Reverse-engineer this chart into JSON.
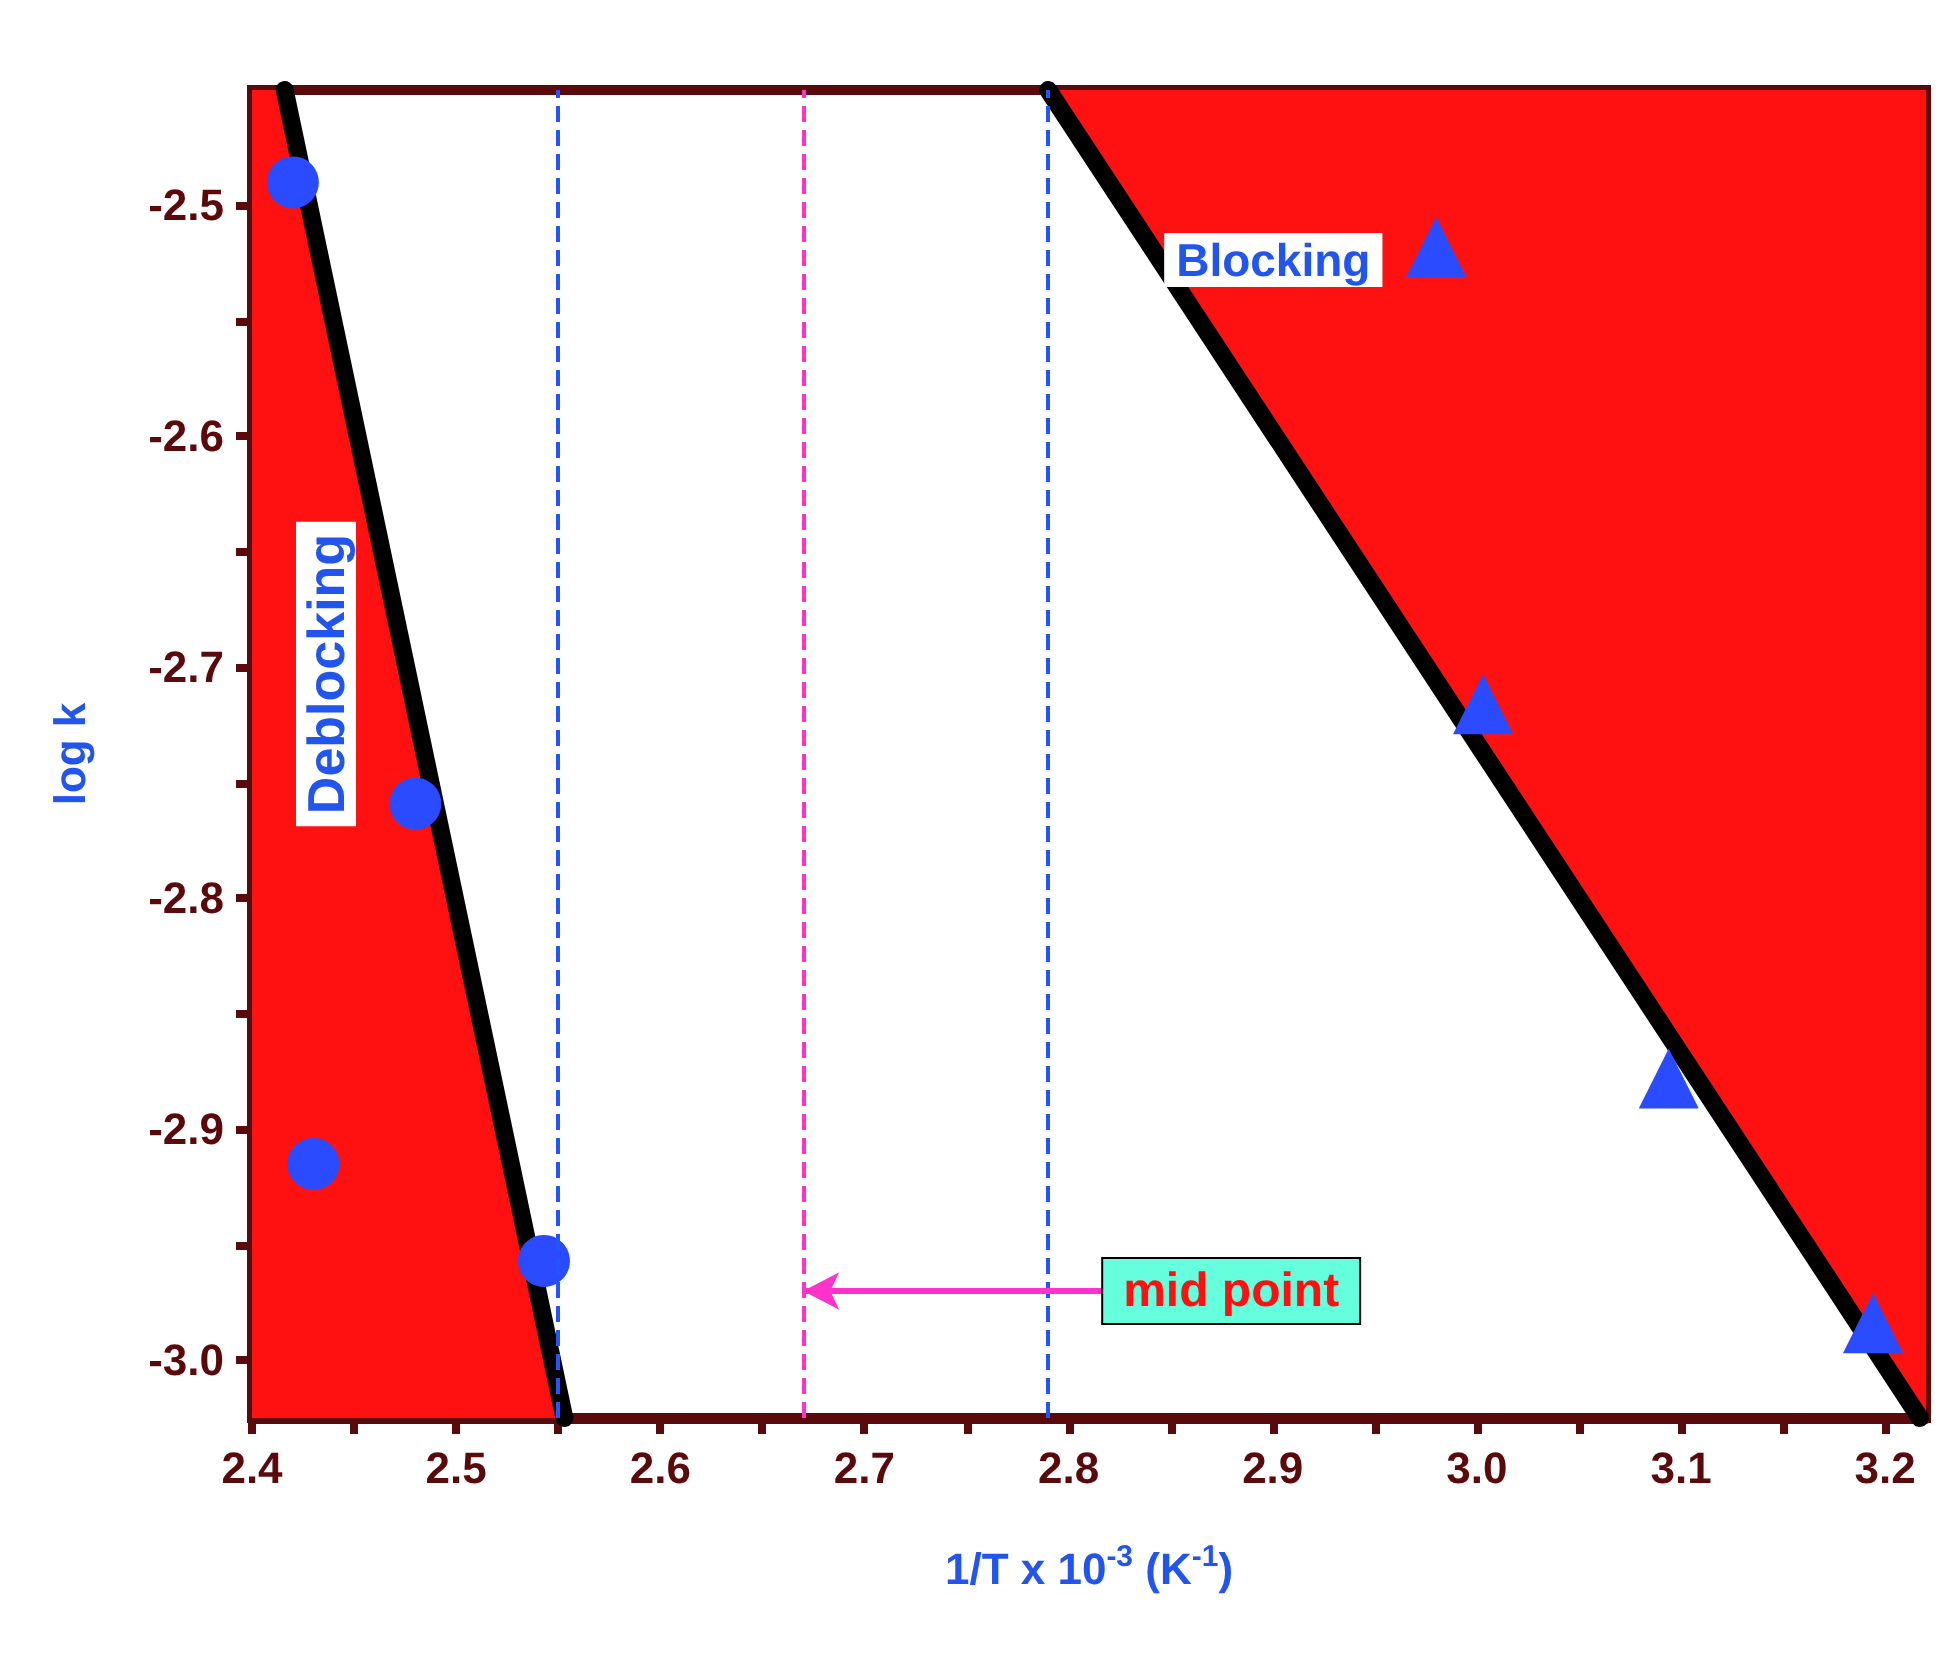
{
  "chart_data": {
    "type": "scatter",
    "xlabel": "1/T x 10$^{-3}$ (K$^{-1}$)",
    "ylabel": "log k",
    "xlim": [
      2.4,
      3.22
    ],
    "ylim": [
      -3.025,
      -2.45
    ],
    "xticks": [
      2.4,
      {
        "value": 2.45,
        "label": null
      },
      2.5,
      {
        "value": 2.55,
        "label": null
      },
      2.6,
      {
        "value": 2.65,
        "label": null
      },
      2.7,
      {
        "value": 2.75,
        "label": null
      },
      2.8,
      {
        "value": 2.85,
        "label": null
      },
      2.9,
      {
        "value": 2.95,
        "label": null
      },
      {
        "value": 3,
        "label": "3.0"
      },
      {
        "value": 3.05,
        "label": null
      },
      3.1,
      {
        "value": 3.15,
        "label": null
      },
      3.2
    ],
    "yticks": [
      -2.5,
      {
        "value": -2.55,
        "label": null
      },
      -2.6,
      {
        "value": -2.65,
        "label": null
      },
      -2.7,
      {
        "value": -2.75,
        "label": null
      },
      -2.8,
      {
        "value": -2.85,
        "label": null
      },
      -2.9,
      {
        "value": -2.95,
        "label": null
      },
      {
        "value": -3,
        "label": "-3.0"
      }
    ],
    "grid": false,
    "legend": false,
    "series": [
      {
        "marker": "circle",
        "color": "#2a4bff",
        "x": [
          2.42,
          2.48,
          2.43,
          2.543
        ],
        "values": [
          -2.49,
          -2.759,
          -2.915,
          -2.957
        ]
      },
      {
        "marker": "triangle",
        "color": "#2a4bff",
        "x": [
          2.98,
          3.003,
          3.094,
          3.194
        ],
        "values": [
          -2.518,
          -2.716,
          -2.878,
          -2.984
        ]
      },
      {
        "type": "line",
        "name": "Deblocking",
        "color": "#000000",
        "colors": [
          "#ff1111",
          "#ff1111",
          "#ff1111"
        ],
        "x": [
          2.4,
          2.416,
          2.553
        ],
        "values": [
          null,
          -2.45,
          -3.025
        ],
        "lower": [
          -3.025,
          -3.025,
          -3.025
        ],
        "upper": [
          -2.45,
          -2.45,
          -3.025
        ]
      },
      {
        "type": "line",
        "name": "Blocking",
        "color": "#000000",
        "colors": [
          "#ff1111",
          "#ff1111",
          "#ff1111"
        ],
        "x": [
          2.79,
          3.217,
          3.22
        ],
        "values": [
          -2.45,
          -3.025,
          null
        ],
        "lower": [
          -2.45,
          -3.025,
          -3.025
        ],
        "upper": [
          -2.45,
          -2.45,
          -2.45
        ]
      }
    ],
    "ref_lines": [
      {
        "axis": "x",
        "value": 2.553,
        "color": "#2255ff",
        "line_style": "dashed"
      },
      {
        "axis": "x",
        "value": 2.67,
        "color": "#ff33cc",
        "line_style": "dashed"
      },
      {
        "axis": "x",
        "value": 2.79,
        "color": "#2255ff",
        "line_style": "dashed"
      }
    ],
    "annotations": [
      {
        "text": "mid point",
        "x": 2.67,
        "y": -2.97
      }
    ]
  }
}
